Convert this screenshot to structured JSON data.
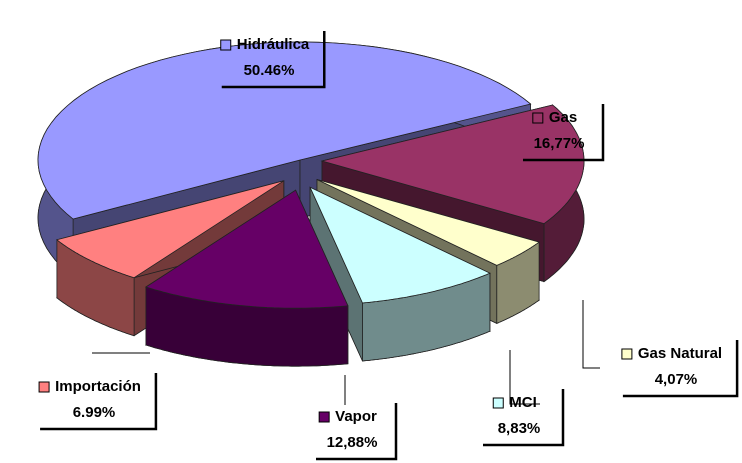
{
  "chart_data": {
    "type": "pie3d",
    "categories": [
      "Hidráulica",
      "Gas",
      "Gas Natural",
      "MCI",
      "Vapor",
      "Importación"
    ],
    "values": [
      50.46,
      16.77,
      4.07,
      8.83,
      12.88,
      6.99
    ],
    "value_labels": [
      "50.46%",
      "16,77%",
      "4,07%",
      "8,83%",
      "12,88%",
      "6.99%"
    ],
    "colors": [
      "#9999ff",
      "#993366",
      "#ffffcc",
      "#ccffff",
      "#660066",
      "#ff8080"
    ]
  }
}
